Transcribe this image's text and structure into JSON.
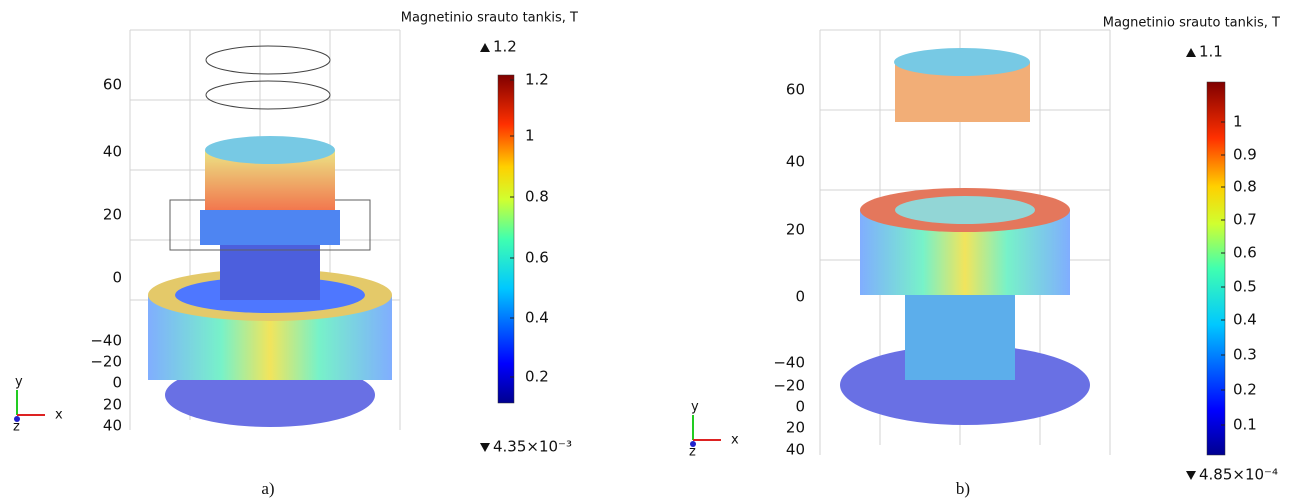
{
  "panels": [
    {
      "colorbar_title": "Magnetinio srauto tankis, T",
      "max_label": "1.2",
      "min_label": "4.35×10⁻³",
      "colorbar_ticks": [
        "1.2",
        "1",
        "0.8",
        "0.6",
        "0.4",
        "0.2"
      ],
      "axis_ticks": [
        "60",
        "40",
        "20",
        "0",
        "−40",
        "−20",
        "0",
        "20",
        "40"
      ],
      "axis_letters": [
        "y",
        "x",
        "z"
      ],
      "caption": "a)"
    },
    {
      "colorbar_title": "Magnetinio srauto tankis, T",
      "max_label": "1.1",
      "min_label": "4.85×10⁻⁴",
      "colorbar_ticks": [
        "1",
        "0.9",
        "0.8",
        "0.7",
        "0.6",
        "0.5",
        "0.4",
        "0.3",
        "0.2",
        "0.1"
      ],
      "axis_ticks": [
        "60",
        "40",
        "20",
        "0",
        "−40",
        "−20",
        "0",
        "20",
        "40"
      ],
      "axis_letters": [
        "y",
        "x",
        "z"
      ],
      "caption": "b)"
    }
  ]
}
